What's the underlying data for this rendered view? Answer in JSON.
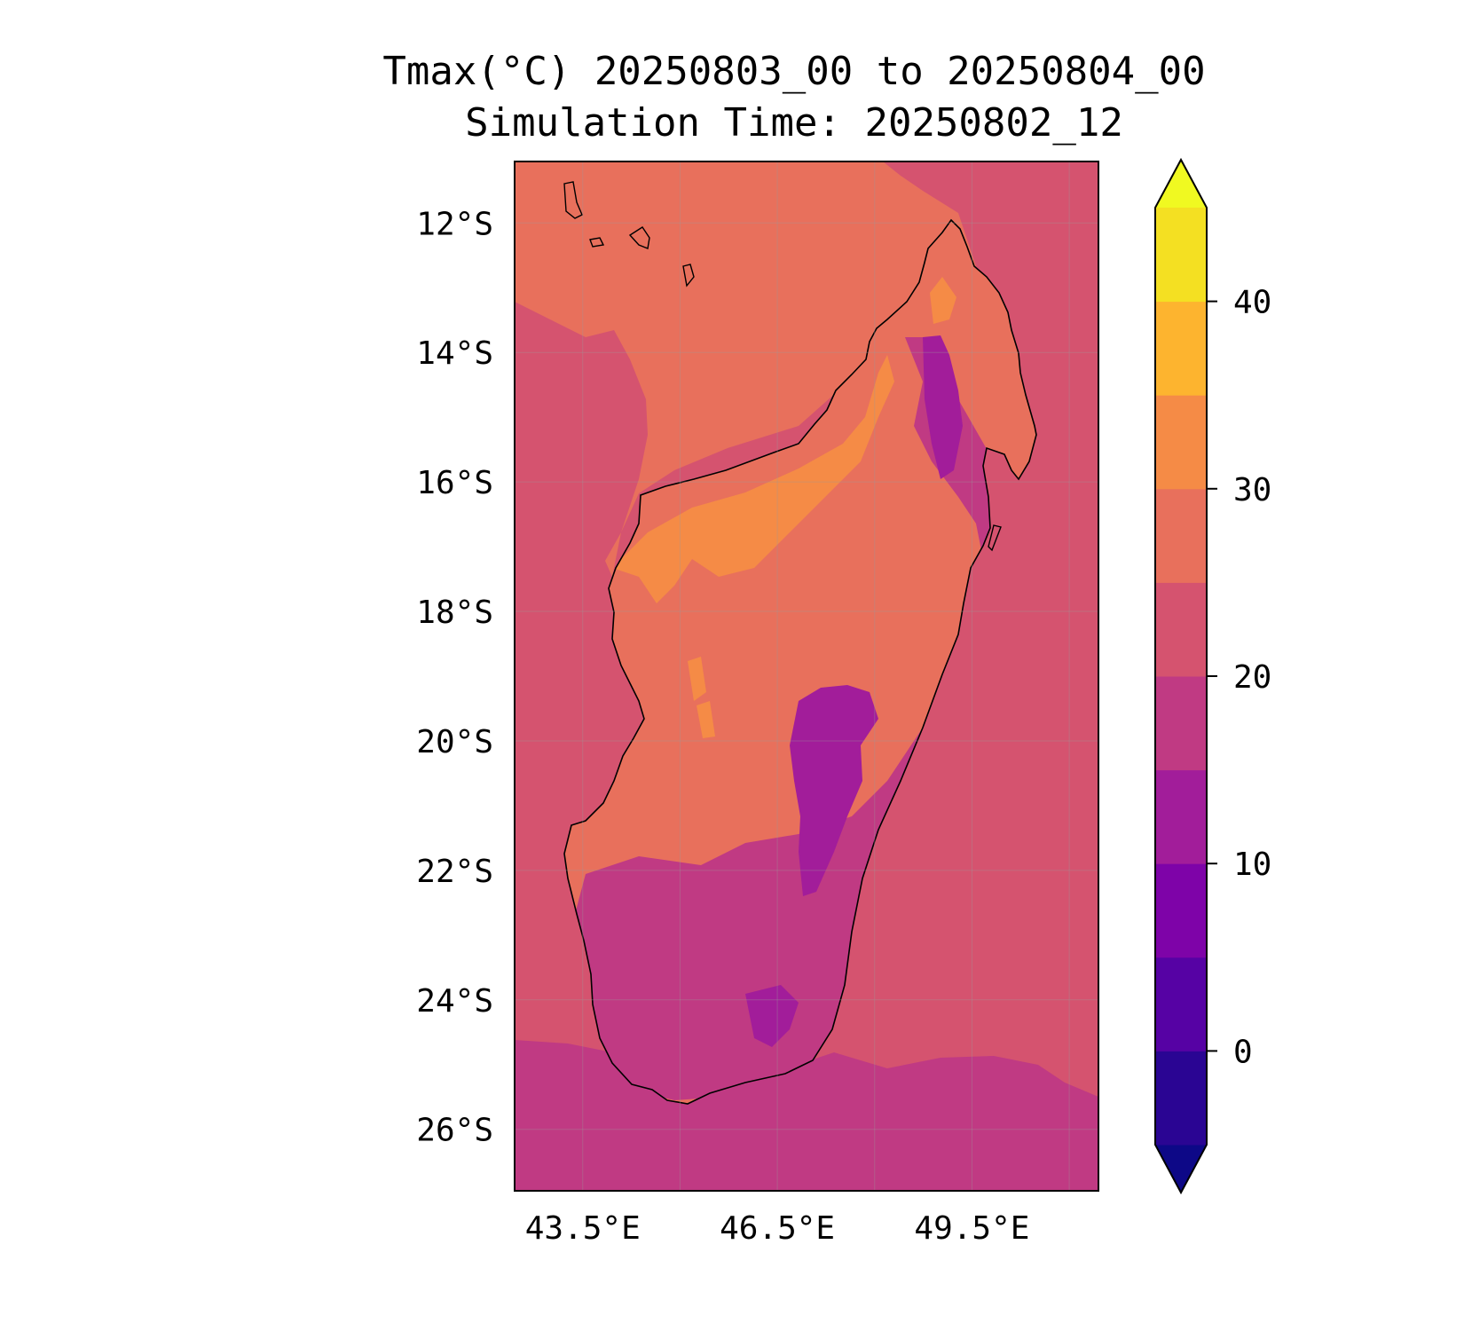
{
  "title": {
    "line1": "Tmax(°C) 20250803_00 to 20250804_00",
    "line2": "Simulation Time: 20250802_12"
  },
  "map": {
    "lat_labels": [
      "12°S",
      "14°S",
      "16°S",
      "18°S",
      "20°S",
      "22°S",
      "24°S",
      "26°S"
    ],
    "lon_labels": [
      "43.5°E",
      "46.5°E",
      "49.5°E"
    ],
    "extent": {
      "lon_min": 42.45,
      "lon_max": 51.45,
      "lat_min": -26.95,
      "lat_max": -11.05
    },
    "gridlines": true,
    "coastline": true
  },
  "colorbar": {
    "tick_labels": [
      "0",
      "10",
      "20",
      "30",
      "40"
    ],
    "levels": [
      -5,
      0,
      5,
      10,
      15,
      20,
      25,
      30,
      35,
      40,
      45
    ],
    "extend": "both",
    "colors": [
      "#0d0887",
      "#2a0593",
      "#5602a4",
      "#7e03a8",
      "#a21d9a",
      "#c03a83",
      "#d5536f",
      "#e8705c",
      "#f58b46",
      "#fdb42f",
      "#f4e022",
      "#f0f921"
    ]
  },
  "fill_colors": {
    "ocean_warm": "#d5536f",
    "ocean_cool": "#c03a83",
    "north_sea": "#e8705c",
    "hot": "#f58b46",
    "cool": "#a21d9a"
  }
}
